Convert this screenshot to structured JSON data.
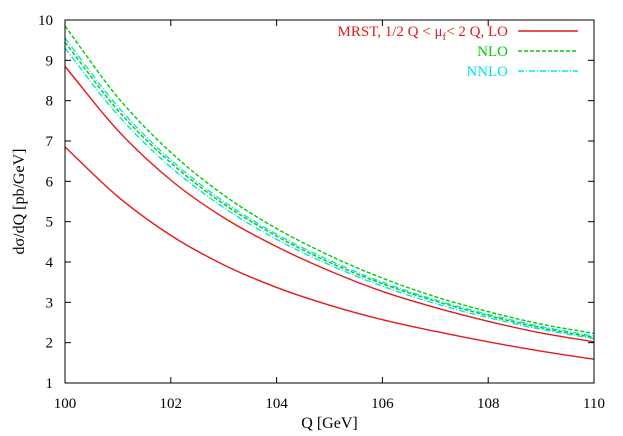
{
  "chart_data": {
    "type": "line",
    "title": "",
    "xlabel": "Q [GeV]",
    "ylabel": "dσ/dQ [pb/GeV]",
    "xlim": [
      100,
      110
    ],
    "ylim": [
      1,
      10
    ],
    "xticks": [
      100,
      102,
      104,
      106,
      108,
      110
    ],
    "yticks": [
      1,
      2,
      3,
      4,
      5,
      6,
      7,
      8,
      9,
      10
    ],
    "grid": false,
    "legend_position": "top-right",
    "legend": [
      {
        "label_main": "MRST, 1/2 Q < μ",
        "label_sub": "f",
        "label_tail": "< 2 Q, LO",
        "color": "#e41a1c",
        "dash": "solid"
      },
      {
        "label_main": "NLO",
        "label_sub": "",
        "label_tail": "",
        "color": "#00cc00",
        "dash": "dashed"
      },
      {
        "label_main": "NNLO",
        "label_sub": "",
        "label_tail": "",
        "color": "#00e5e5",
        "dash": "dashdot"
      }
    ],
    "x": [
      100,
      101,
      102,
      103,
      104,
      105,
      106,
      107,
      108,
      109,
      110
    ],
    "series": [
      {
        "group": "LO",
        "color": "#e41a1c",
        "dash": "solid",
        "values": [
          8.85,
          7.26,
          6.03,
          5.1,
          4.38,
          3.78,
          3.27,
          2.87,
          2.53,
          2.24,
          2.02
        ]
      },
      {
        "group": "LO",
        "color": "#e41a1c",
        "dash": "solid",
        "values": [
          6.85,
          5.62,
          4.66,
          3.93,
          3.37,
          2.93,
          2.57,
          2.28,
          2.02,
          1.79,
          1.59
        ]
      },
      {
        "group": "NLO",
        "color": "#00cc00",
        "dash": "dashed",
        "values": [
          9.85,
          8.08,
          6.72,
          5.66,
          4.83,
          4.16,
          3.6,
          3.14,
          2.77,
          2.46,
          2.23
        ]
      },
      {
        "group": "NLO",
        "color": "#00cc00",
        "dash": "dashed",
        "values": [
          9.45,
          7.76,
          6.46,
          5.44,
          4.64,
          3.99,
          3.46,
          3.03,
          2.67,
          2.37,
          2.13
        ]
      },
      {
        "group": "NNLO",
        "color": "#00e5e5",
        "dash": "dashdot",
        "values": [
          9.55,
          7.85,
          6.53,
          5.5,
          4.69,
          4.04,
          3.5,
          3.06,
          2.7,
          2.4,
          2.16
        ]
      },
      {
        "group": "NNLO",
        "color": "#00e5e5",
        "dash": "dashdot",
        "values": [
          9.3,
          7.64,
          6.35,
          5.35,
          4.56,
          3.93,
          3.4,
          2.97,
          2.62,
          2.33,
          2.1
        ]
      }
    ]
  }
}
